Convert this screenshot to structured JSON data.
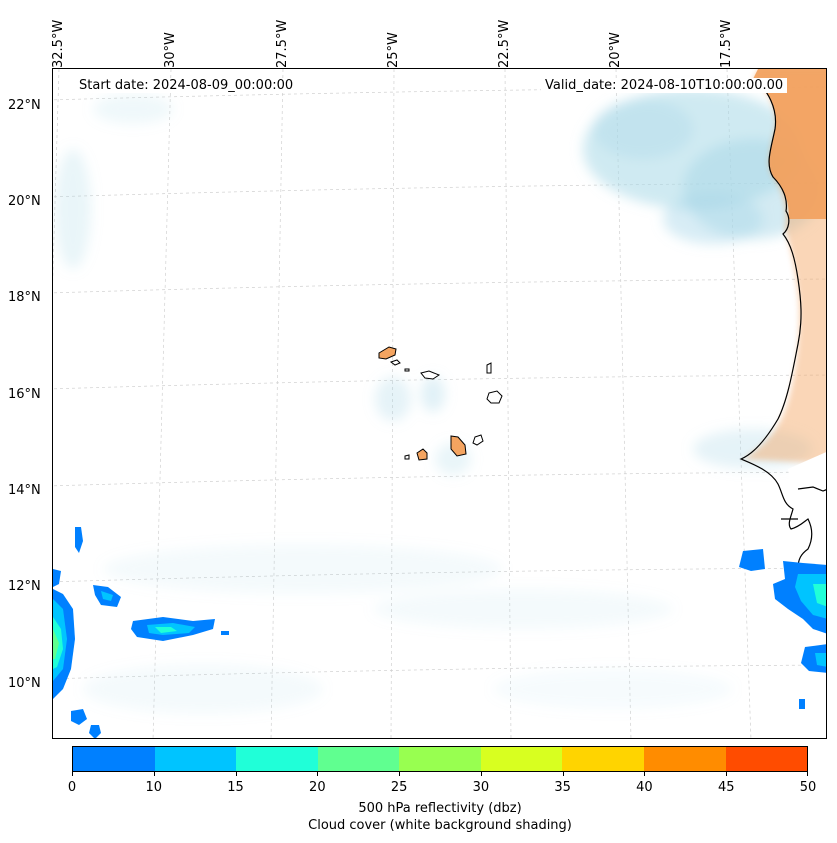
{
  "map": {
    "start_date": "Start date: 2024-08-09_00:00:00",
    "valid_date": "Valid_date: 2024-08-10T10:00:00.00",
    "lon_labels": [
      "32.5°W",
      "30°W",
      "27.5°W",
      "25°W",
      "22.5°W",
      "20°W",
      "17.5°W"
    ],
    "lat_labels": [
      "22°N",
      "20°N",
      "18°N",
      "16°N",
      "14°N",
      "12°N",
      "10°N"
    ],
    "region": "Cabo Verde and West African coast",
    "colors": {
      "land": "#f4a460",
      "cloud": "#a8d8e8",
      "coastline": "#000000"
    }
  },
  "colorbar": {
    "ticks": [
      "0",
      "10",
      "15",
      "20",
      "25",
      "30",
      "35",
      "40",
      "45",
      "50"
    ],
    "colors": [
      "#0080ff",
      "#00c4ff",
      "#20ffd8",
      "#60ff90",
      "#98ff50",
      "#d8ff20",
      "#ffd400",
      "#ff8c00",
      "#ff4c00"
    ],
    "label_line1": "500 hPa reflectivity (dbz)",
    "label_line2": "Cloud cover (white background shading)"
  }
}
